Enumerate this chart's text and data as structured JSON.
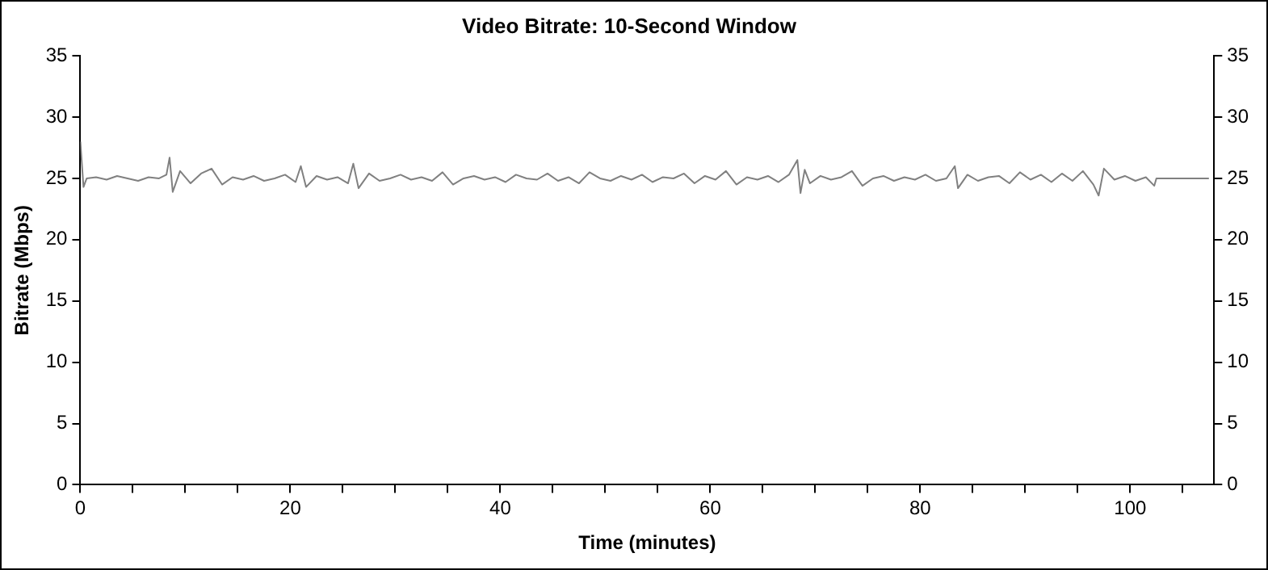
{
  "chart_data": {
    "type": "line",
    "title": "Video Bitrate: 10-Second Window",
    "xlabel": "Time (minutes)",
    "ylabel": "Bitrate (Mbps)",
    "xlim": [
      0,
      108
    ],
    "xticks": [
      0,
      {
        "value": 5,
        "label": null
      },
      {
        "value": 10,
        "label": null
      },
      {
        "value": 15,
        "label": null
      },
      20,
      {
        "value": 25,
        "label": null
      },
      {
        "value": 30,
        "label": null
      },
      {
        "value": 35,
        "label": null
      },
      40,
      {
        "value": 45,
        "label": null
      },
      {
        "value": 50,
        "label": null
      },
      {
        "value": 55,
        "label": null
      },
      60,
      {
        "value": 65,
        "label": null
      },
      {
        "value": 70,
        "label": null
      },
      {
        "value": 75,
        "label": null
      },
      80,
      {
        "value": 85,
        "label": null
      },
      {
        "value": 90,
        "label": null
      },
      {
        "value": 95,
        "label": null
      },
      100,
      {
        "value": 105,
        "label": null
      }
    ],
    "ylim": [
      0,
      35
    ],
    "yticks": [
      0,
      5,
      10,
      15,
      20,
      25,
      30,
      35
    ],
    "y2lim": [
      0,
      35
    ],
    "y2ticks": [
      0,
      5,
      10,
      15,
      20,
      25,
      30,
      35
    ],
    "grid": false,
    "legend": false,
    "marker": "none",
    "line_style": "solid",
    "series": [
      {
        "color": "#808080",
        "x": [
          0,
          0.3,
          0.6,
          1.5,
          2.5,
          3.5,
          4.5,
          5.5,
          6.5,
          7.5,
          8.2,
          8.5,
          8.8,
          9.5,
          10.5,
          11.5,
          12.5,
          13.5,
          14.5,
          15.5,
          16.5,
          17.5,
          18.5,
          19.5,
          20.5,
          21,
          21.5,
          22.5,
          23.5,
          24.5,
          25.5,
          26,
          26.5,
          27.5,
          28.5,
          29.5,
          30.5,
          31.5,
          32.5,
          33.5,
          34.5,
          35.5,
          36.5,
          37.5,
          38.5,
          39.5,
          40.5,
          41.5,
          42.5,
          43.5,
          44.5,
          45.5,
          46.5,
          47.5,
          48.5,
          49.5,
          50.5,
          51.5,
          52.5,
          53.5,
          54.5,
          55.5,
          56.5,
          57.5,
          58.5,
          59.5,
          60.5,
          61.5,
          62.5,
          63.5,
          64.5,
          65.5,
          66.5,
          67.5,
          68.3,
          68.6,
          69,
          69.5,
          70.5,
          71.5,
          72.5,
          73.5,
          74.5,
          75.5,
          76.5,
          77.5,
          78.5,
          79.5,
          80.5,
          81.5,
          82.5,
          83.3,
          83.6,
          84.5,
          85.5,
          86.5,
          87.5,
          88.5,
          89.5,
          90.5,
          91.5,
          92.5,
          93.5,
          94.5,
          95.5,
          96.5,
          97,
          97.5,
          98.5,
          99.5,
          100.5,
          101.5,
          102.3,
          102.5,
          107.5
        ],
        "values": [
          28,
          24.3,
          25,
          25.1,
          24.9,
          25.2,
          25,
          24.8,
          25.1,
          25,
          25.3,
          26.7,
          23.9,
          25.6,
          24.6,
          25.4,
          25.8,
          24.5,
          25.1,
          24.9,
          25.2,
          24.8,
          25,
          25.3,
          24.7,
          26,
          24.3,
          25.2,
          24.9,
          25.1,
          24.6,
          26.2,
          24.2,
          25.4,
          24.8,
          25,
          25.3,
          24.9,
          25.1,
          24.8,
          25.5,
          24.5,
          25,
          25.2,
          24.9,
          25.1,
          24.7,
          25.3,
          25,
          24.9,
          25.4,
          24.8,
          25.1,
          24.6,
          25.5,
          25,
          24.8,
          25.2,
          24.9,
          25.3,
          24.7,
          25.1,
          25,
          25.4,
          24.6,
          25.2,
          24.9,
          25.6,
          24.5,
          25.1,
          24.9,
          25.2,
          24.7,
          25.3,
          26.5,
          23.8,
          25.7,
          24.6,
          25.2,
          24.9,
          25.1,
          25.6,
          24.4,
          25,
          25.2,
          24.8,
          25.1,
          24.9,
          25.3,
          24.8,
          25,
          26,
          24.2,
          25.3,
          24.8,
          25.1,
          25.2,
          24.6,
          25.5,
          24.9,
          25.3,
          24.7,
          25.4,
          24.8,
          25.6,
          24.5,
          23.6,
          25.8,
          24.9,
          25.2,
          24.8,
          25.1,
          24.4,
          25,
          25
        ]
      }
    ]
  }
}
